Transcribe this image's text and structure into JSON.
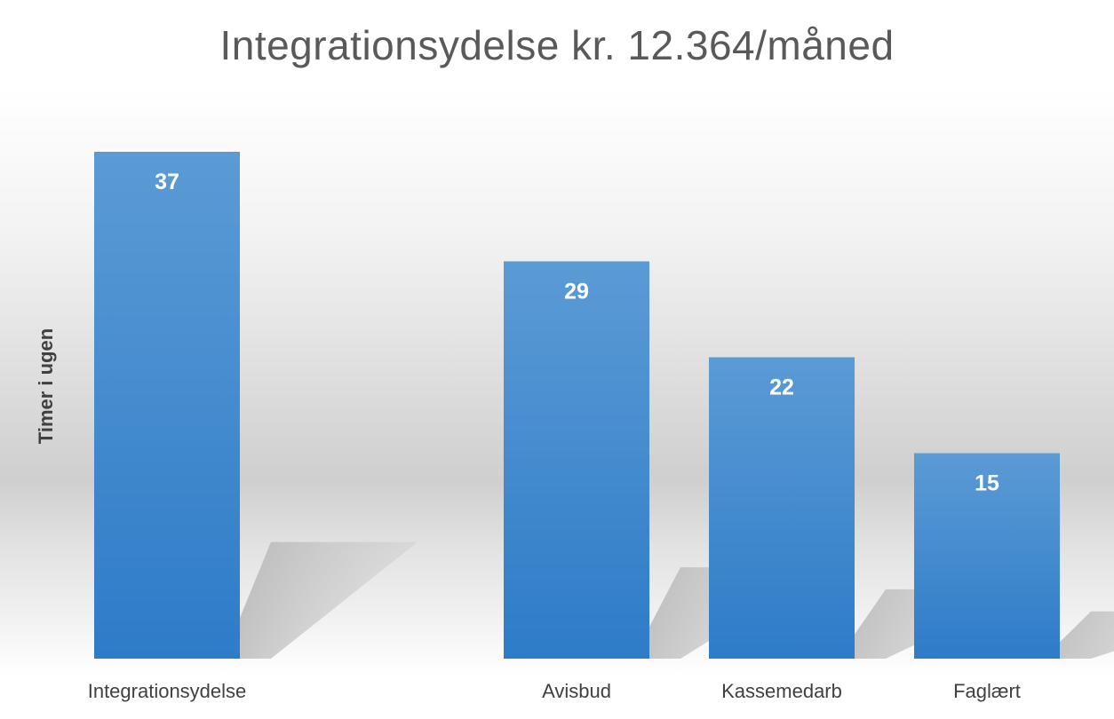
{
  "chart_data": {
    "type": "bar",
    "title": "Integrationsydelse kr. 12.364/måned",
    "ylabel": "Timer i ugen",
    "xlabel": "",
    "categories": [
      "Integrationsydelse",
      "Avisbud",
      "Kassemedarb",
      "Faglært"
    ],
    "values": [
      37,
      29,
      22,
      15
    ],
    "data_labels": [
      "37",
      "29",
      "22",
      "15"
    ],
    "ylim": [
      0,
      37
    ],
    "grid": false,
    "legend": "none",
    "colors": {
      "bar_top": "#5b9bd5",
      "bar_bottom": "#2e7bc8",
      "label_text": "#ffffff"
    }
  }
}
